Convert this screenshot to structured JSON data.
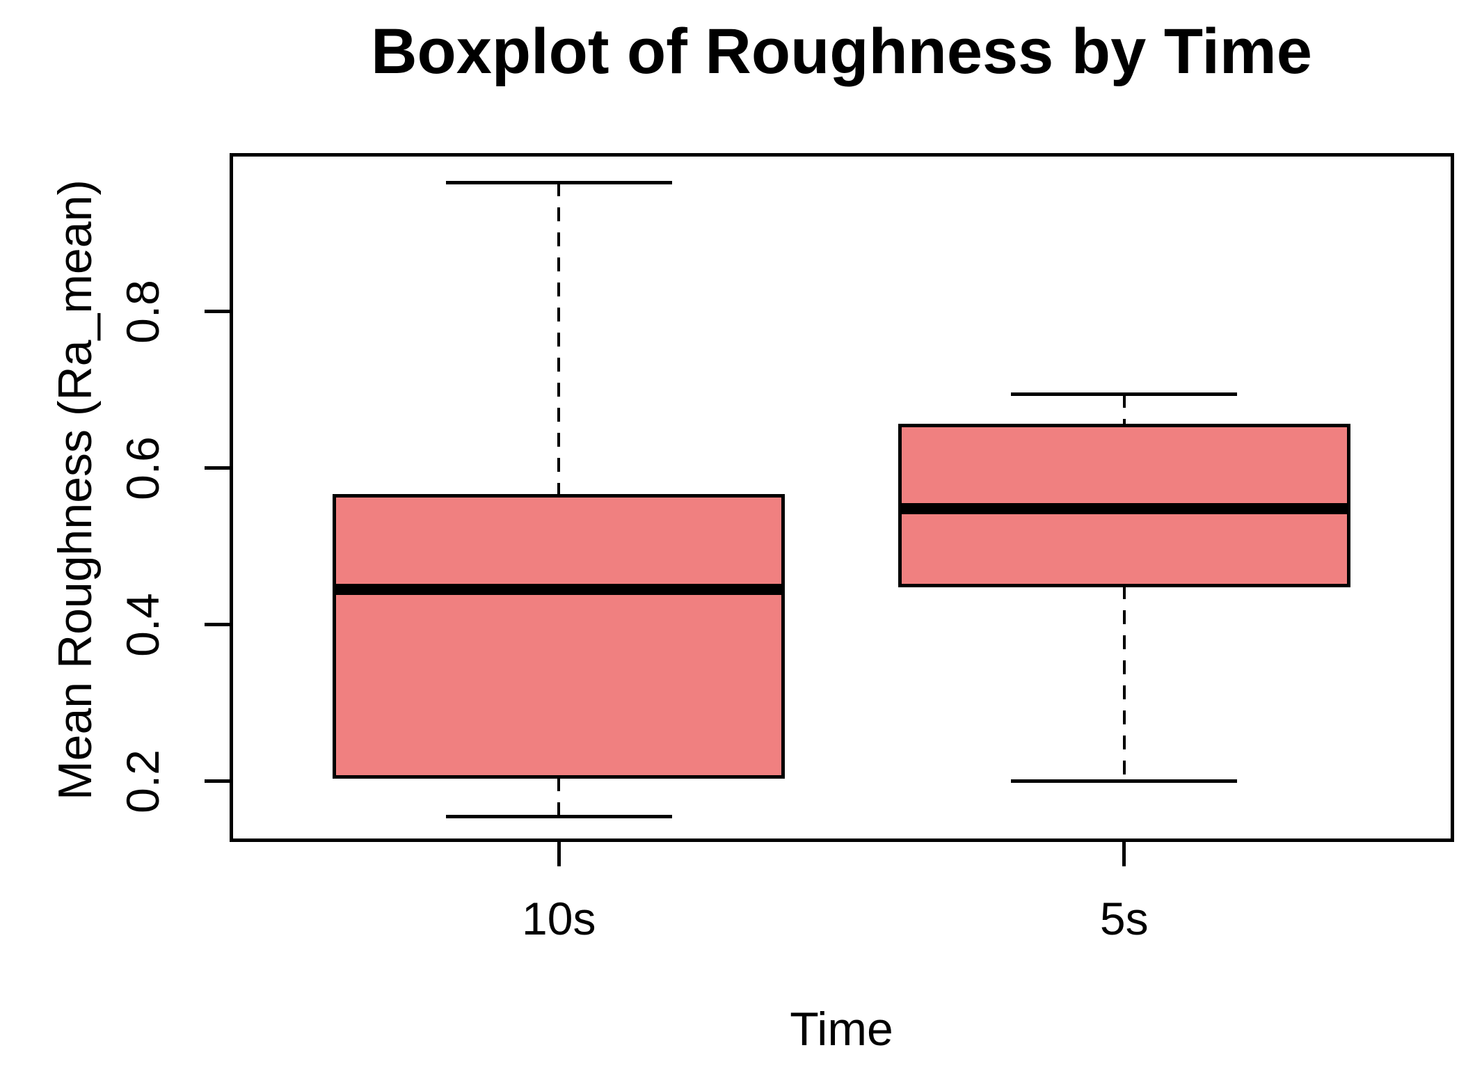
{
  "chart_data": {
    "type": "boxplot",
    "title": "Boxplot of Roughness by Time",
    "xlabel": "Time",
    "ylabel": "Mean Roughness (Ra_mean)",
    "categories": [
      "10s",
      "5s"
    ],
    "series": [
      {
        "name": "10s",
        "min": 0.155,
        "q1": 0.205,
        "median": 0.445,
        "q3": 0.565,
        "max": 0.965
      },
      {
        "name": "5s",
        "min": 0.2,
        "q1": 0.45,
        "median": 0.548,
        "q3": 0.655,
        "max": 0.695
      }
    ],
    "y_ticks": [
      "0.2",
      "0.4",
      "0.6",
      "0.8"
    ],
    "y_tick_values": [
      0.2,
      0.4,
      0.6,
      0.8
    ],
    "ylim": [
      0.124,
      1.001
    ],
    "grid": false,
    "legend": null,
    "colors": {
      "box_fill": "#F08080",
      "box_border": "#000000",
      "text": "#000000",
      "background": "#FFFFFF"
    }
  }
}
